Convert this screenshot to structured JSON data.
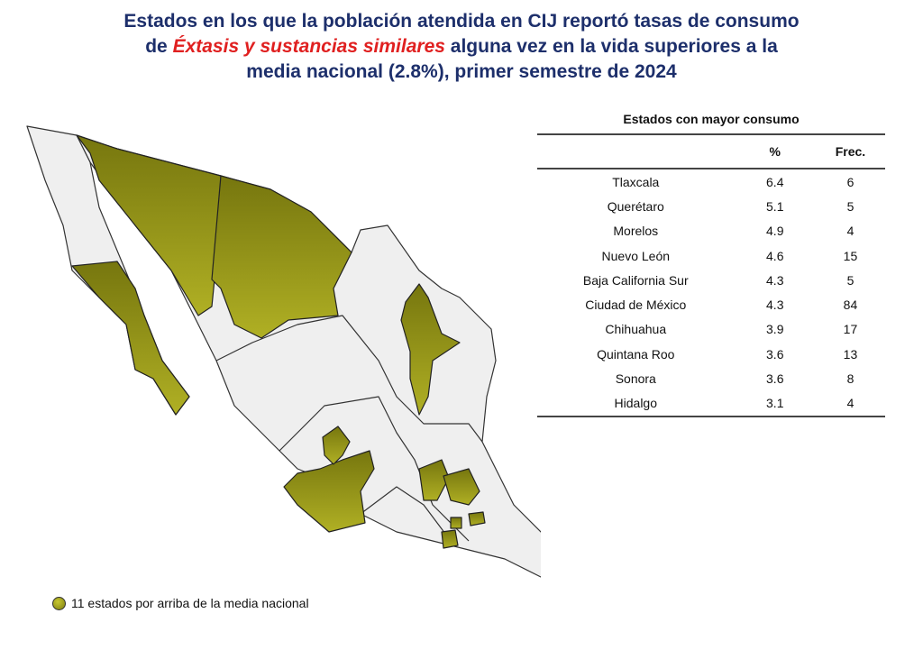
{
  "title": {
    "line1": "Estados en los que la población atendida en CIJ reportó tasas de consumo",
    "line2_pre": "de ",
    "line2_highlight": "Éxtasis y sustancias similares",
    "line2_post": " alguna vez en la vida superiores a la",
    "line3": "media nacional (2.8%), primer semestre de 2024"
  },
  "colors": {
    "title": "#1d2f6b",
    "highlight": "#e02020",
    "state_fill": "#9a9a1a",
    "state_base": "#efefef"
  },
  "table": {
    "caption": "Estados con mayor consumo",
    "headers": [
      "",
      "%",
      "Frec."
    ],
    "rows": [
      {
        "state": "Tlaxcala",
        "pct": "6.4",
        "freq": "6"
      },
      {
        "state": "Querétaro",
        "pct": "5.1",
        "freq": "5"
      },
      {
        "state": "Morelos",
        "pct": "4.9",
        "freq": "4"
      },
      {
        "state": "Nuevo León",
        "pct": "4.6",
        "freq": "15"
      },
      {
        "state": "Baja California Sur",
        "pct": "4.3",
        "freq": "5"
      },
      {
        "state": "Ciudad de México",
        "pct": "4.3",
        "freq": "84"
      },
      {
        "state": "Chihuahua",
        "pct": "3.9",
        "freq": "17"
      },
      {
        "state": "Quintana Roo",
        "pct": "3.6",
        "freq": "13"
      },
      {
        "state": "Sonora",
        "pct": "3.6",
        "freq": "8"
      },
      {
        "state": "Hidalgo",
        "pct": "3.1",
        "freq": "4"
      }
    ]
  },
  "legend": {
    "label": "11 estados por arriba de la media nacional"
  }
}
